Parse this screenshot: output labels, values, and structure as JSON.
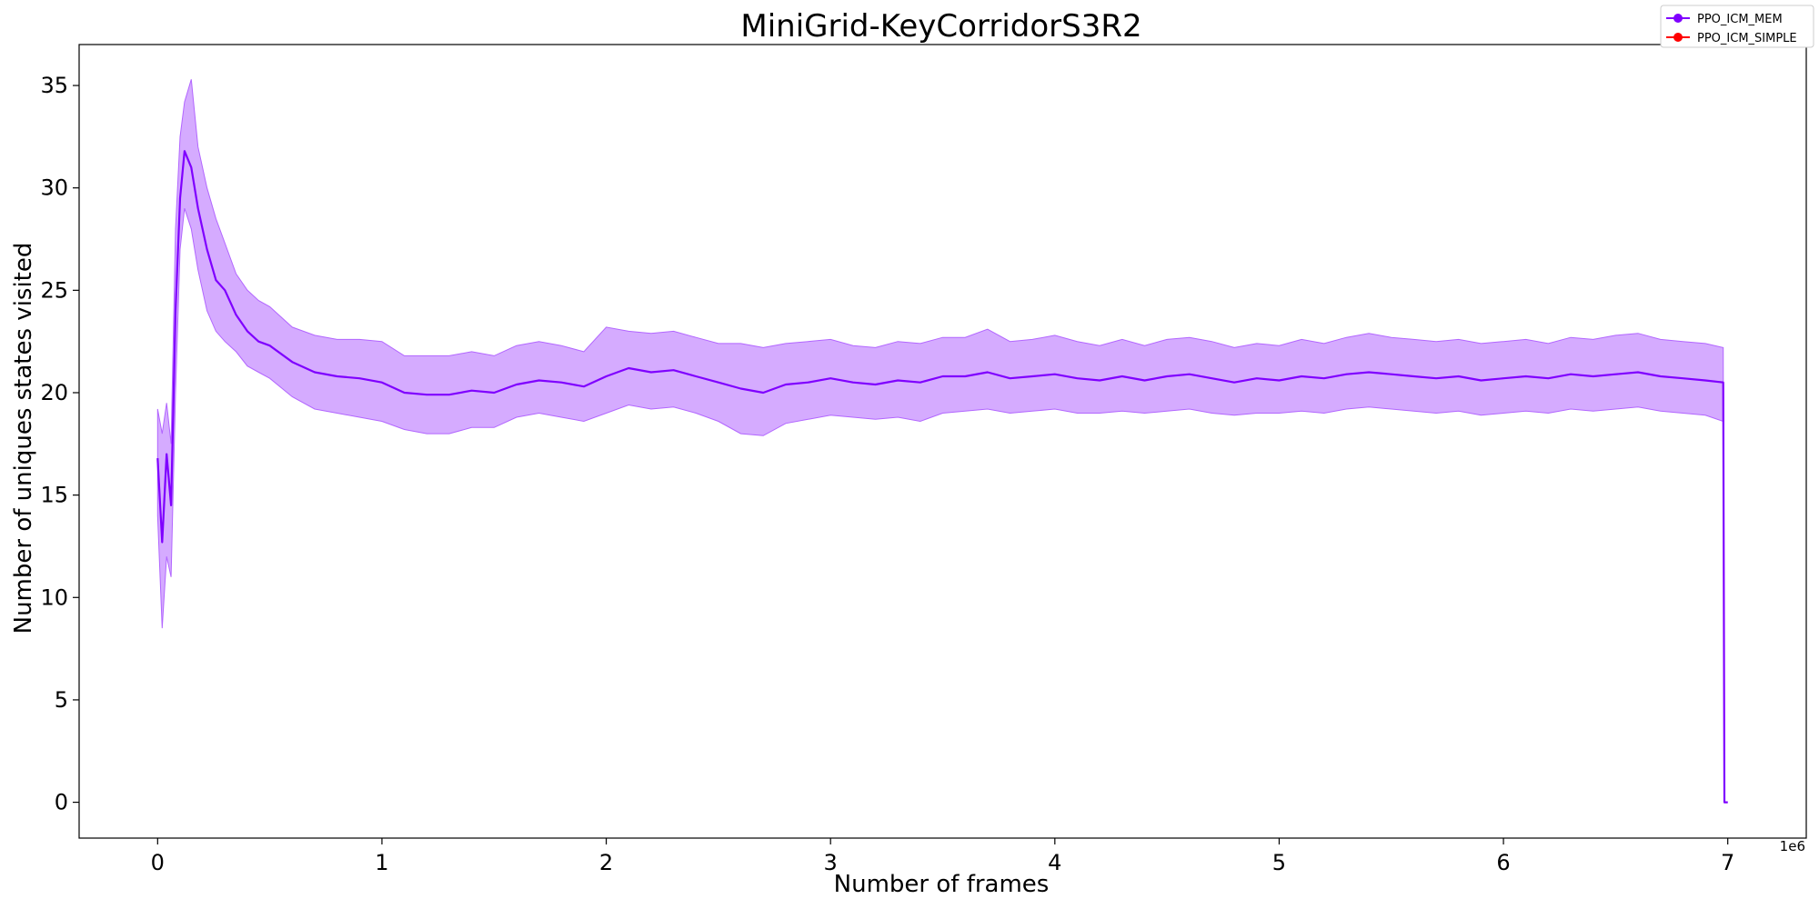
{
  "chart_data": {
    "type": "line",
    "title": "MiniGrid-KeyCorridorS3R2",
    "xlabel": "Number of frames",
    "ylabel": "Number of uniques states visited",
    "x_offset_label": "1e6",
    "xlim": [
      -0.35,
      7.35
    ],
    "ylim": [
      -1.75,
      37.0
    ],
    "x_ticks": [
      0,
      1,
      2,
      3,
      4,
      5,
      6,
      7
    ],
    "y_ticks": [
      0,
      5,
      10,
      15,
      20,
      25,
      30,
      35
    ],
    "grid": false,
    "legend_position": "top-right",
    "series": [
      {
        "name": "PPO_ICM_MEM",
        "color": "#7f00ff",
        "band_color": "#b266ff",
        "x": [
          0.0,
          0.02,
          0.04,
          0.06,
          0.08,
          0.1,
          0.12,
          0.15,
          0.18,
          0.22,
          0.26,
          0.3,
          0.35,
          0.4,
          0.45,
          0.5,
          0.6,
          0.7,
          0.8,
          0.9,
          1.0,
          1.1,
          1.2,
          1.3,
          1.4,
          1.5,
          1.6,
          1.7,
          1.8,
          1.9,
          2.0,
          2.1,
          2.2,
          2.3,
          2.4,
          2.5,
          2.6,
          2.7,
          2.8,
          2.9,
          3.0,
          3.1,
          3.2,
          3.3,
          3.4,
          3.5,
          3.6,
          3.7,
          3.8,
          3.9,
          4.0,
          4.1,
          4.2,
          4.3,
          4.4,
          4.5,
          4.6,
          4.7,
          4.8,
          4.9,
          5.0,
          5.1,
          5.2,
          5.3,
          5.4,
          5.5,
          5.6,
          5.7,
          5.8,
          5.9,
          6.0,
          6.1,
          6.2,
          6.3,
          6.4,
          6.5,
          6.6,
          6.7,
          6.8,
          6.9,
          6.98,
          6.985,
          7.0
        ],
        "y": [
          16.8,
          12.7,
          17.0,
          14.5,
          24.0,
          29.5,
          31.8,
          31.0,
          29.0,
          27.0,
          25.5,
          25.0,
          23.8,
          23.0,
          22.5,
          22.3,
          21.5,
          21.0,
          20.8,
          20.7,
          20.5,
          20.0,
          19.9,
          19.9,
          20.1,
          20.0,
          20.4,
          20.6,
          20.5,
          20.3,
          20.8,
          21.2,
          21.0,
          21.1,
          20.8,
          20.5,
          20.2,
          20.0,
          20.4,
          20.5,
          20.7,
          20.5,
          20.4,
          20.6,
          20.5,
          20.8,
          20.8,
          21.0,
          20.7,
          20.8,
          20.9,
          20.7,
          20.6,
          20.8,
          20.6,
          20.8,
          20.9,
          20.7,
          20.5,
          20.7,
          20.6,
          20.8,
          20.7,
          20.9,
          21.0,
          20.9,
          20.8,
          20.7,
          20.8,
          20.6,
          20.7,
          20.8,
          20.7,
          20.9,
          20.8,
          20.9,
          21.0,
          20.8,
          20.7,
          20.6,
          20.5,
          0.0,
          0.0
        ],
        "lower": [
          14.0,
          8.5,
          12.0,
          11.0,
          20.0,
          27.0,
          29.0,
          28.0,
          26.0,
          24.0,
          23.0,
          22.5,
          22.0,
          21.3,
          21.0,
          20.7,
          19.8,
          19.2,
          19.0,
          18.8,
          18.6,
          18.2,
          18.0,
          18.0,
          18.3,
          18.3,
          18.8,
          19.0,
          18.8,
          18.6,
          19.0,
          19.4,
          19.2,
          19.3,
          19.0,
          18.6,
          18.0,
          17.9,
          18.5,
          18.7,
          18.9,
          18.8,
          18.7,
          18.8,
          18.6,
          19.0,
          19.1,
          19.2,
          19.0,
          19.1,
          19.2,
          19.0,
          19.0,
          19.1,
          19.0,
          19.1,
          19.2,
          19.0,
          18.9,
          19.0,
          19.0,
          19.1,
          19.0,
          19.2,
          19.3,
          19.2,
          19.1,
          19.0,
          19.1,
          18.9,
          19.0,
          19.1,
          19.0,
          19.2,
          19.1,
          19.2,
          19.3,
          19.1,
          19.0,
          18.9,
          18.6,
          0.0,
          0.0
        ],
        "upper": [
          19.2,
          18.0,
          19.5,
          17.5,
          28.0,
          32.5,
          34.2,
          35.3,
          32.0,
          30.0,
          28.5,
          27.3,
          25.8,
          25.0,
          24.5,
          24.2,
          23.2,
          22.8,
          22.6,
          22.6,
          22.5,
          21.8,
          21.8,
          21.8,
          22.0,
          21.8,
          22.3,
          22.5,
          22.3,
          22.0,
          23.2,
          23.0,
          22.9,
          23.0,
          22.7,
          22.4,
          22.4,
          22.2,
          22.4,
          22.5,
          22.6,
          22.3,
          22.2,
          22.5,
          22.4,
          22.7,
          22.7,
          23.1,
          22.5,
          22.6,
          22.8,
          22.5,
          22.3,
          22.6,
          22.3,
          22.6,
          22.7,
          22.5,
          22.2,
          22.4,
          22.3,
          22.6,
          22.4,
          22.7,
          22.9,
          22.7,
          22.6,
          22.5,
          22.6,
          22.4,
          22.5,
          22.6,
          22.4,
          22.7,
          22.6,
          22.8,
          22.9,
          22.6,
          22.5,
          22.4,
          22.2,
          0.0,
          0.0
        ]
      },
      {
        "name": "PPO_ICM_SIMPLE",
        "color": "#ff0000",
        "x": [],
        "y": []
      }
    ]
  }
}
